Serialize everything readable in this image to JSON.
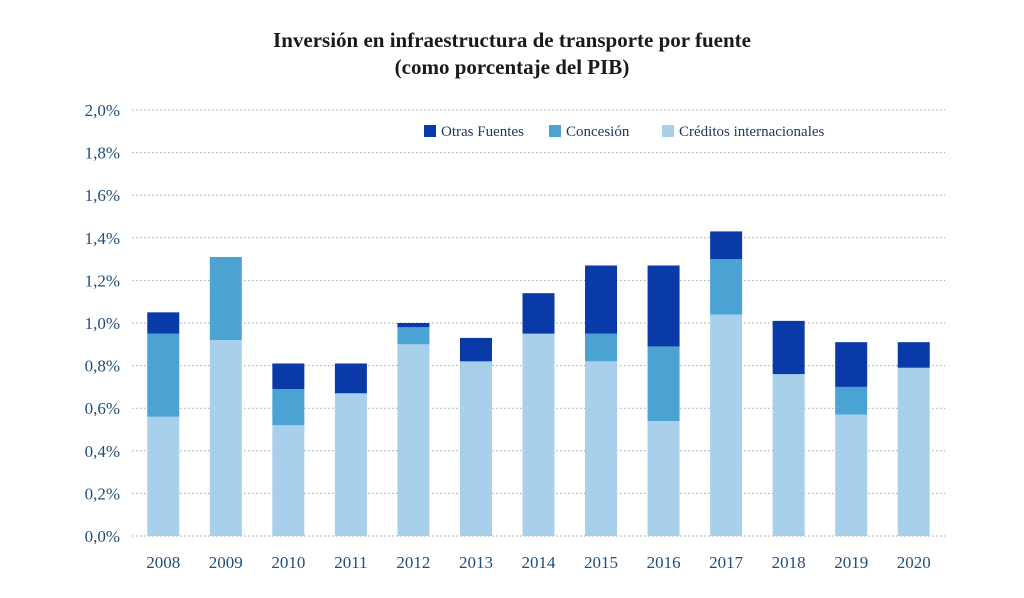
{
  "chart_data": {
    "type": "bar",
    "stacked": true,
    "title": "Inversión en infraestructura de transporte por fuente",
    "subtitle": "(como porcentaje del PIB)",
    "categories": [
      "2008",
      "2009",
      "2010",
      "2011",
      "2012",
      "2013",
      "2014",
      "2015",
      "2016",
      "2017",
      "2018",
      "2019",
      "2020"
    ],
    "series": [
      {
        "name": "Créditos internacionales",
        "color": "#a8d0eb",
        "values": [
          0.56,
          0.92,
          0.52,
          0.67,
          0.9,
          0.82,
          0.95,
          0.82,
          0.54,
          1.04,
          0.76,
          0.57,
          0.79
        ]
      },
      {
        "name": "Concesión",
        "color": "#4aa3d3",
        "values": [
          0.39,
          0.39,
          0.17,
          0.0,
          0.08,
          0.0,
          0.0,
          0.13,
          0.35,
          0.26,
          0.0,
          0.13,
          0.0
        ]
      },
      {
        "name": "Otras Fuentes",
        "color": "#0a3aa8",
        "values": [
          0.1,
          0.0,
          0.12,
          0.14,
          0.02,
          0.11,
          0.19,
          0.32,
          0.38,
          0.13,
          0.25,
          0.21,
          0.12
        ]
      }
    ],
    "legend_order": [
      "Otras Fuentes",
      "Concesión",
      "Créditos internacionales"
    ],
    "y_ticks": [
      "0,0%",
      "0,2%",
      "0,4%",
      "0,6%",
      "0,8%",
      "1,0%",
      "1,2%",
      "1,4%",
      "1,6%",
      "1,8%",
      "2,0%"
    ],
    "ylim": [
      0,
      2.0
    ],
    "xlabel": "",
    "ylabel": "",
    "grid": true,
    "legend_position": "top-right"
  }
}
